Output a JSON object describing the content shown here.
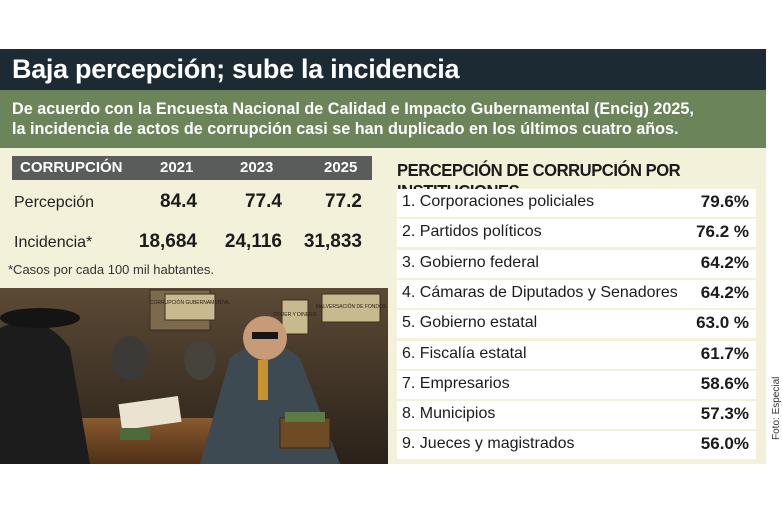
{
  "title": "Baja percepción; sube la incidencia",
  "subtitle_line1": "De acuerdo con la Encuesta Nacional de Calidad e Impacto Gubernamental (Encig) 2025,",
  "subtitle_line2": "la incidencia de actos de corrupción casi se han duplicado en los últimos cuatro años.",
  "credit": "Foto: Especial",
  "illustration": {
    "sign1": "CORRUPCIÓN GUBERNAMENTAL",
    "sign2": "PODER Y DINERO",
    "sign3": "MALVERSACIÓN DE FONDOS"
  },
  "colors": {
    "title_bg": "#1c2a33",
    "band_bg": "#6b8459",
    "panel_bg": "#f3f1d9",
    "header_bg": "#5a5c5b"
  },
  "chart_data": [
    {
      "type": "table",
      "header": [
        "CORRUPCIÓN",
        "2021",
        "2023",
        "2025"
      ],
      "rows": [
        {
          "label": "Percepción",
          "values": [
            "84.4",
            "77.4",
            "77.2"
          ]
        },
        {
          "label": "Incidencia*",
          "values": [
            "18,684",
            "24,116",
            "31,833"
          ]
        }
      ],
      "footnote": "*Casos por cada 100 mil habtantes."
    },
    {
      "type": "table",
      "title": "PERCEPCIÓN DE CORRUPCIÓN POR INSTITUCIONES",
      "rows": [
        {
          "name": "1. Corporaciones policiales",
          "value": "79.6%"
        },
        {
          "name": "2. Partidos políticos",
          "value": "76.2 %"
        },
        {
          "name": "3. Gobierno federal",
          "value": "64.2%"
        },
        {
          "name": "4. Cámaras de Diputados y Senadores",
          "value": "64.2%"
        },
        {
          "name": "5. Gobierno estatal",
          "value": "63.0 %"
        },
        {
          "name": "6. Fiscalía estatal",
          "value": "61.7%"
        },
        {
          "name": "7. Empresarios",
          "value": "58.6%"
        },
        {
          "name": "8. Municipios",
          "value": "57.3%"
        },
        {
          "name": "9. Jueces y magistrados",
          "value": "56.0%"
        }
      ]
    }
  ]
}
